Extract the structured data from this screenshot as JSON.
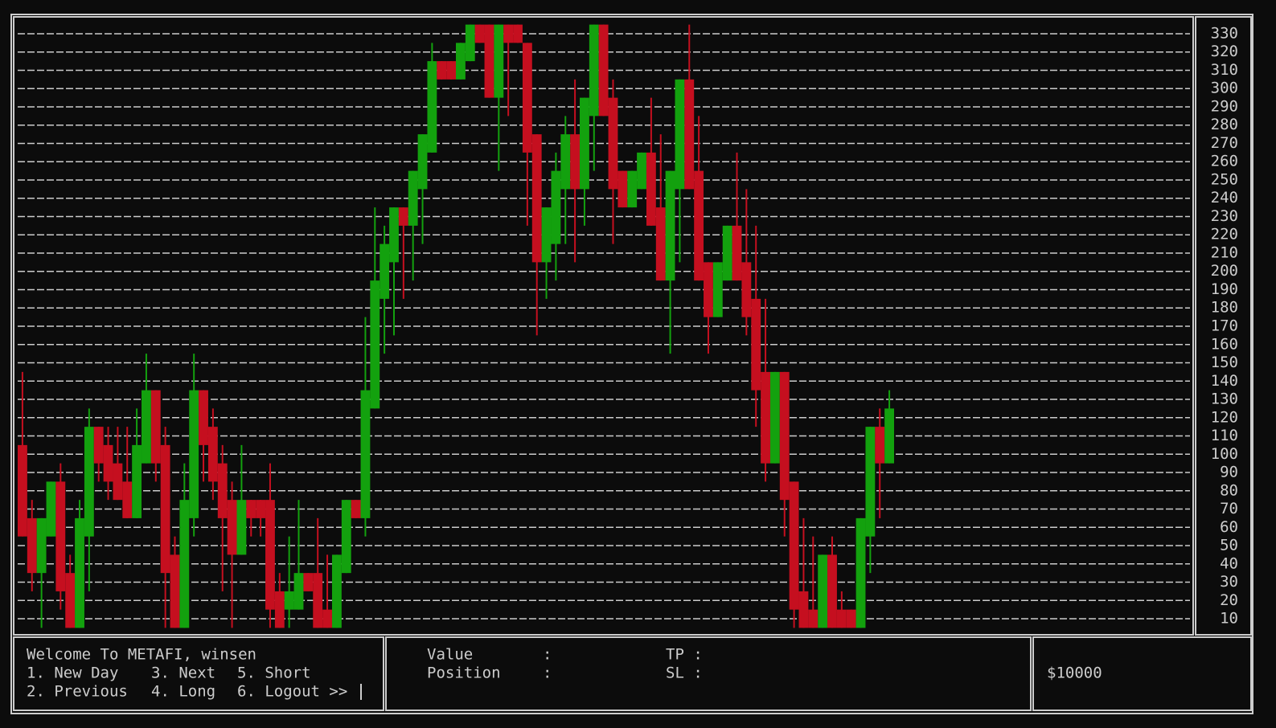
{
  "chart_data": {
    "type": "candlestick",
    "up_color": "#13a10e",
    "down_color": "#c50f1f",
    "open": [
      105,
      65,
      35,
      55,
      85,
      35,
      5,
      55,
      115,
      105,
      95,
      85,
      65,
      95,
      135,
      105,
      45,
      5,
      65,
      135,
      115,
      95,
      75,
      45,
      75,
      75,
      75,
      25,
      15,
      15,
      35,
      35,
      15,
      5,
      35,
      75,
      65,
      125,
      185,
      205,
      235,
      225,
      245,
      265,
      315,
      315,
      305,
      315,
      335,
      335,
      295,
      335,
      335,
      325,
      275,
      205,
      215,
      245,
      275,
      245,
      285,
      335,
      295,
      255,
      235,
      245,
      265,
      235,
      195,
      245,
      305,
      255,
      205,
      175,
      195,
      225,
      205,
      185,
      145,
      95,
      145,
      85,
      25,
      15,
      5,
      45,
      15,
      15,
      5,
      55,
      115,
      95
    ],
    "high": [
      145,
      75,
      65,
      85,
      95,
      45,
      75,
      125,
      115,
      115,
      115,
      115,
      125,
      155,
      135,
      115,
      55,
      95,
      155,
      135,
      125,
      105,
      85,
      105,
      75,
      75,
      95,
      35,
      55,
      75,
      35,
      65,
      45,
      45,
      75,
      75,
      175,
      235,
      225,
      235,
      235,
      255,
      275,
      325,
      315,
      315,
      325,
      335,
      335,
      335,
      335,
      335,
      335,
      325,
      275,
      235,
      265,
      285,
      305,
      295,
      335,
      335,
      305,
      255,
      255,
      265,
      295,
      275,
      255,
      305,
      335,
      285,
      205,
      205,
      225,
      265,
      245,
      225,
      185,
      145,
      145,
      85,
      65,
      55,
      45,
      55,
      25,
      15,
      65,
      115,
      125,
      135
    ],
    "low": [
      55,
      25,
      5,
      55,
      15,
      5,
      5,
      25,
      85,
      75,
      75,
      65,
      65,
      95,
      85,
      5,
      5,
      5,
      55,
      85,
      75,
      25,
      5,
      45,
      55,
      55,
      5,
      5,
      5,
      15,
      25,
      5,
      5,
      5,
      35,
      65,
      55,
      125,
      155,
      165,
      185,
      195,
      215,
      265,
      305,
      305,
      305,
      315,
      325,
      295,
      255,
      285,
      325,
      225,
      165,
      185,
      195,
      215,
      205,
      225,
      255,
      285,
      215,
      235,
      235,
      245,
      225,
      195,
      155,
      205,
      245,
      195,
      155,
      175,
      195,
      195,
      165,
      115,
      85,
      95,
      55,
      5,
      5,
      5,
      5,
      5,
      5,
      5,
      5,
      35,
      65,
      95
    ],
    "close": [
      55,
      35,
      65,
      85,
      25,
      5,
      65,
      115,
      95,
      85,
      75,
      65,
      105,
      135,
      95,
      35,
      5,
      75,
      135,
      105,
      85,
      65,
      45,
      75,
      65,
      65,
      15,
      5,
      25,
      35,
      25,
      5,
      5,
      45,
      75,
      65,
      135,
      195,
      215,
      235,
      225,
      255,
      275,
      315,
      305,
      305,
      325,
      335,
      325,
      295,
      335,
      325,
      325,
      265,
      205,
      235,
      255,
      275,
      245,
      295,
      335,
      285,
      245,
      235,
      255,
      265,
      225,
      195,
      255,
      305,
      245,
      195,
      175,
      205,
      225,
      195,
      175,
      135,
      95,
      145,
      75,
      15,
      5,
      5,
      45,
      5,
      5,
      5,
      65,
      115,
      95,
      125
    ],
    "ylim": [
      5,
      335
    ],
    "yticks": [
      10,
      20,
      30,
      40,
      50,
      60,
      70,
      80,
      90,
      100,
      110,
      120,
      130,
      140,
      150,
      160,
      170,
      180,
      190,
      200,
      210,
      220,
      230,
      240,
      250,
      260,
      270,
      280,
      290,
      300,
      310,
      320,
      330
    ],
    "grid": true
  },
  "menu": {
    "welcome": "Welcome To METAFI, winsen",
    "options": [
      "1. New Day",
      "3. Next",
      "5. Short",
      "2. Previous",
      "4. Long",
      "6. Logout >>"
    ]
  },
  "status": {
    "value_label": "Value",
    "value_sep": ":",
    "tp": "TP :",
    "position_label": "Position",
    "position_sep": ":",
    "sl": "SL :"
  },
  "balance": "$10000"
}
